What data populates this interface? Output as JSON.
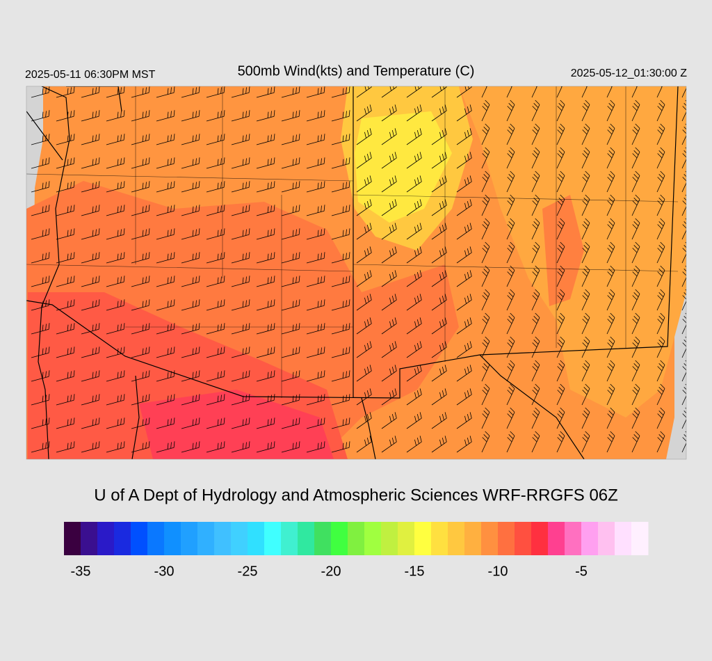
{
  "header": {
    "local_time": "2025-05-11 06:30PM MST",
    "title": "500mb Wind(kts) and Temperature (C)",
    "valid_time": "2025-05-12_01:30:00 Z"
  },
  "credit": "U of A Dept of Hydrology and Atmospheric Sciences WRF-RRGFS 06Z",
  "colorbar": {
    "range": [
      -36,
      -1
    ],
    "colors": [
      "#3a0040",
      "#3a0f8f",
      "#2a1ac8",
      "#1a2ae0",
      "#0050ff",
      "#0a78ff",
      "#1090ff",
      "#20a0ff",
      "#30b0ff",
      "#40c0ff",
      "#40d0ff",
      "#30e0ff",
      "#40ffff",
      "#40f0d0",
      "#30e8a0",
      "#40e060",
      "#40ff40",
      "#80f040",
      "#a0ff40",
      "#c0f040",
      "#e0f040",
      "#ffff40",
      "#ffe040",
      "#ffc840",
      "#ffb040",
      "#ff9040",
      "#ff7040",
      "#ff5040",
      "#ff3040",
      "#ff4090",
      "#ff70c0",
      "#ffa0f0",
      "#ffc0f0",
      "#ffe0ff",
      "#fff0ff"
    ],
    "ticks": [
      -35,
      -30,
      -25,
      -20,
      -15,
      -10,
      -5
    ]
  }
}
